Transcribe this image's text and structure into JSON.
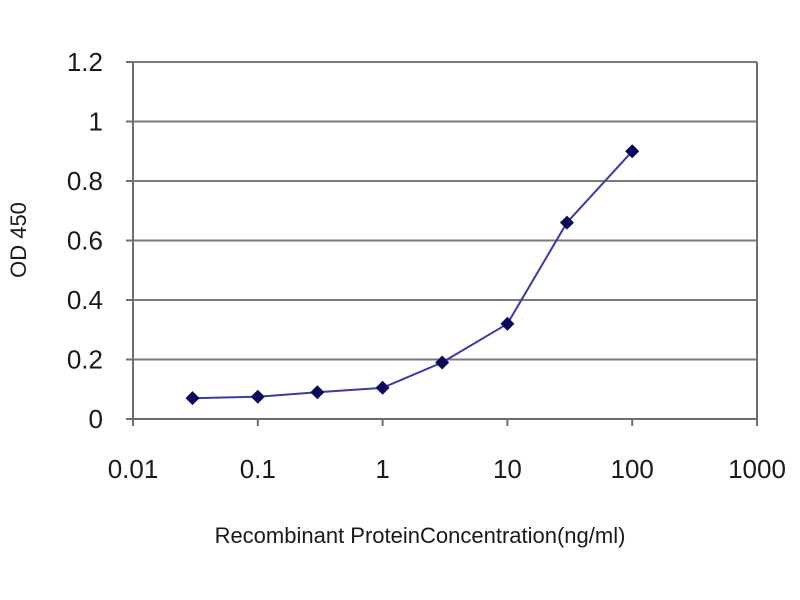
{
  "chart_data": {
    "type": "line",
    "title": "",
    "xlabel": "Recombinant ProteinConcentration(ng/ml)",
    "ylabel": "OD 450",
    "x_scale": "log",
    "xlim": [
      0.01,
      1000
    ],
    "ylim": [
      0,
      1.2
    ],
    "x_ticks": [
      "0.01",
      "0.1",
      "1",
      "10",
      "100",
      "1000"
    ],
    "y_ticks": [
      "0",
      "0.2",
      "0.4",
      "0.6",
      "0.8",
      "1",
      "1.2"
    ],
    "grid": "horizontal",
    "series": [
      {
        "x": [
          0.03,
          0.1,
          0.3,
          1,
          3,
          10,
          30,
          100
        ],
        "y": [
          0.07,
          0.075,
          0.09,
          0.105,
          0.19,
          0.32,
          0.66,
          0.9
        ]
      }
    ],
    "colors": {
      "line": "#3a3aa8",
      "marker": "#0a0a5a",
      "grid": "#7a7a7a",
      "axis": "#6e6e6e"
    }
  }
}
